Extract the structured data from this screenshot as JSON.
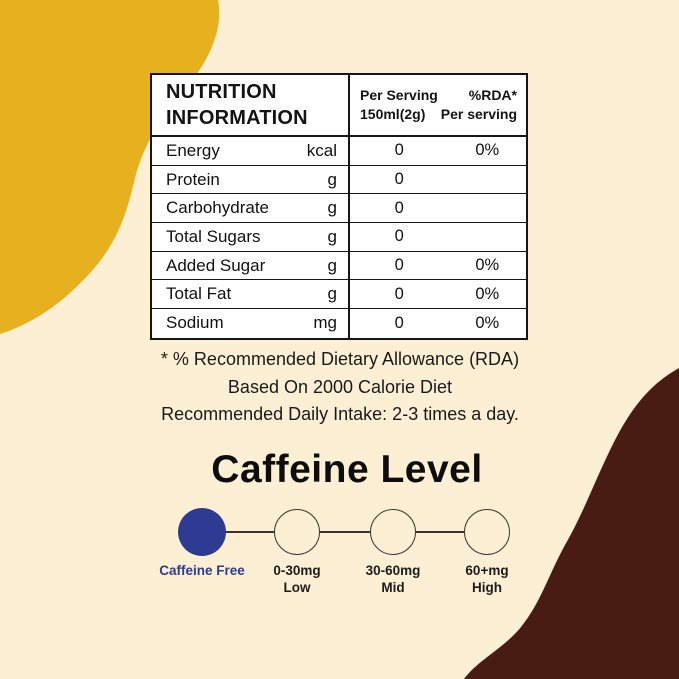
{
  "colors": {
    "background": "#fdefd3",
    "blob_yellow": "#e6b11c",
    "blob_brown": "#481c12",
    "accent_blue": "#2d3b93",
    "table_background": "#ffffff",
    "text": "#111111"
  },
  "nutrition_table": {
    "title": "NUTRITION\nINFORMATION",
    "col_serving_header": "Per Serving\n150ml(2g)",
    "col_rda_header": "%RDA*\nPer serving",
    "rows": [
      {
        "name": "Energy",
        "unit": "kcal",
        "per_serving": "0",
        "rda": "0%"
      },
      {
        "name": "Protein",
        "unit": "g",
        "per_serving": "0",
        "rda": ""
      },
      {
        "name": "Carbohydrate",
        "unit": "g",
        "per_serving": "0",
        "rda": ""
      },
      {
        "name": "Total Sugars",
        "unit": "g",
        "per_serving": "0",
        "rda": ""
      },
      {
        "name": "Added Sugar",
        "unit": "g",
        "per_serving": "0",
        "rda": "0%"
      },
      {
        "name": "Total Fat",
        "unit": "g",
        "per_serving": "0",
        "rda": "0%"
      },
      {
        "name": "Sodium",
        "unit": "mg",
        "per_serving": "0",
        "rda": "0%"
      }
    ]
  },
  "footnotes": {
    "line1": "* % Recommended Dietary Allowance (RDA)",
    "line2": "Based On 2000 Calorie Diet",
    "line3": "Recommended Daily Intake: 2-3 times a day."
  },
  "caffeine": {
    "title": "Caffeine Level",
    "levels": [
      {
        "label": "Caffeine Free",
        "selected": true
      },
      {
        "label": "0-30mg\nLow",
        "selected": false
      },
      {
        "label": "30-60mg\nMid",
        "selected": false
      },
      {
        "label": "60+mg\nHigh",
        "selected": false
      }
    ]
  }
}
